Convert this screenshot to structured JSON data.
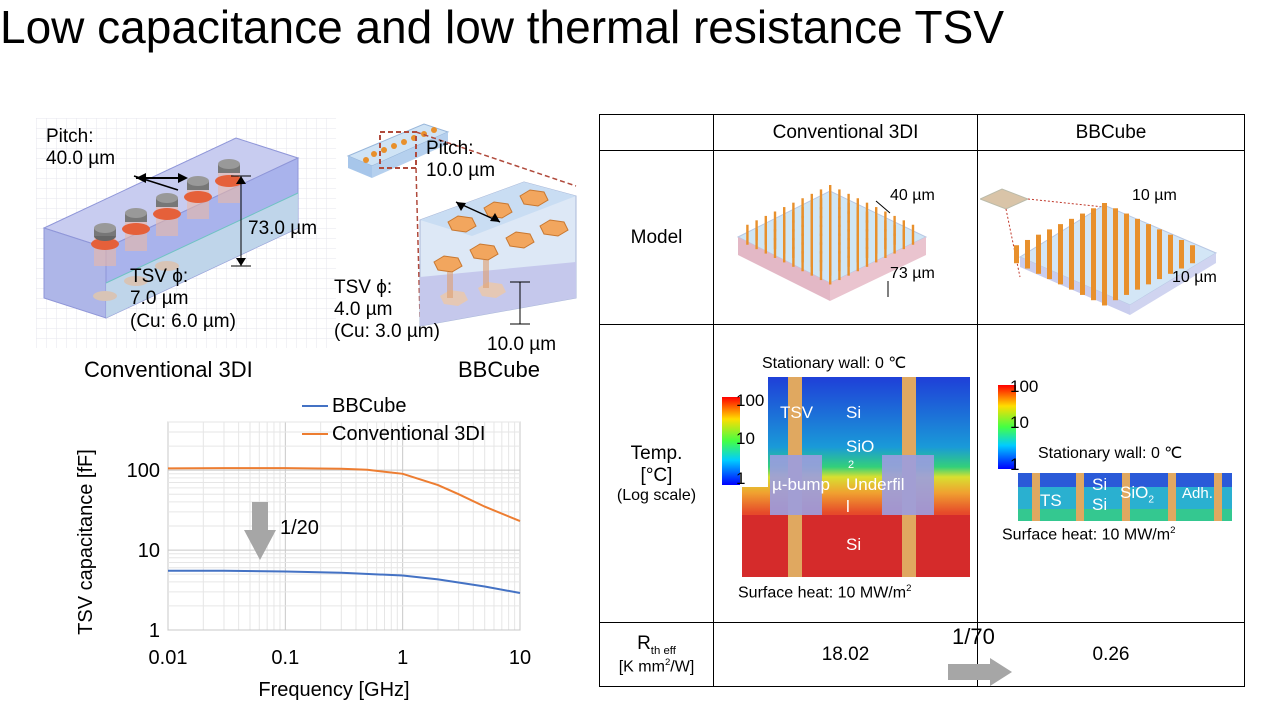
{
  "slide": {
    "title": "Low capacitance and low thermal resistance TSV"
  },
  "figures": {
    "conventional": {
      "pitch_label": "Pitch:",
      "pitch_value": "40.0 µm",
      "height_value": "73.0 µm",
      "tsv_label": "TSV ϕ:",
      "tsv_value": "7.0 µm",
      "cu_value": "(Cu: 6.0 µm)",
      "caption": "Conventional 3DI"
    },
    "bbcube": {
      "pitch_label": "Pitch:",
      "pitch_value": "10.0 µm",
      "tsv_label": "TSV ϕ:",
      "tsv_value": "4.0 µm",
      "cu_value": "(Cu: 3.0 µm)",
      "height_value": "10.0 µm",
      "caption": "BBCube"
    }
  },
  "chart_data": {
    "type": "line",
    "xlabel": "Frequency [GHz]",
    "ylabel": "TSV capacitance [fF]",
    "x_scale": "log",
    "y_scale": "log",
    "xlim": [
      0.01,
      10
    ],
    "ylim": [
      1,
      400
    ],
    "x_ticks": [
      "0.01",
      "0.1",
      "1",
      "10"
    ],
    "y_ticks": [
      "1",
      "10",
      "100"
    ],
    "grid": true,
    "legend_position": "top-right",
    "annotation": "1/20",
    "series": [
      {
        "name": "BBCube",
        "color": "#4472c4",
        "x": [
          0.01,
          0.03,
          0.1,
          0.3,
          1,
          2,
          5,
          10
        ],
        "y": [
          5.5,
          5.5,
          5.4,
          5.2,
          4.8,
          4.3,
          3.5,
          2.9
        ]
      },
      {
        "name": "Conventional 3DI",
        "color": "#ed7d31",
        "x": [
          0.01,
          0.03,
          0.1,
          0.3,
          0.5,
          1,
          2,
          3,
          5,
          10
        ],
        "y": [
          105,
          106,
          106,
          104,
          101,
          90,
          65,
          50,
          35,
          23
        ]
      }
    ]
  },
  "table": {
    "headers": [
      "",
      "Conventional 3DI",
      "BBCube"
    ],
    "row_model": {
      "label": "Model",
      "conv_pitch": "40 µm",
      "conv_height": "73 µm",
      "bb_pitch": "10 µm",
      "bb_height": "10 µm"
    },
    "row_temp": {
      "label_line1": "Temp.",
      "label_line2": "[°C]",
      "label_line3": "(Log scale)",
      "colorbar_ticks": [
        "100",
        "10",
        "1"
      ],
      "conv_top": "Stationary wall: 0 ℃",
      "conv_bottom_prefix": "Surface heat: 10 MW/m",
      "conv_labels": {
        "tsv": "TSV",
        "si_top": "Si",
        "sio_a": "SiO",
        "sio_b": "2",
        "bump": "µ-bump",
        "underfill_a": "Underfil",
        "underfill_b": "l",
        "si_bottom": "Si"
      },
      "bb_top": "Stationary wall: 0 ℃",
      "bb_bottom_prefix": "Surface heat: 10 MW/m",
      "bb_labels": {
        "ts": "TS",
        "si_a": "Si",
        "si_b": "Si",
        "sio": "SiO",
        "adh": "Adh."
      }
    },
    "row_rth": {
      "label_main": "R",
      "label_sub": "th eff",
      "label_unit_a": "[K mm",
      "label_unit_b": "/W]",
      "conv_value": "18.02",
      "ratio": "1/70",
      "bb_value": "0.26"
    }
  }
}
